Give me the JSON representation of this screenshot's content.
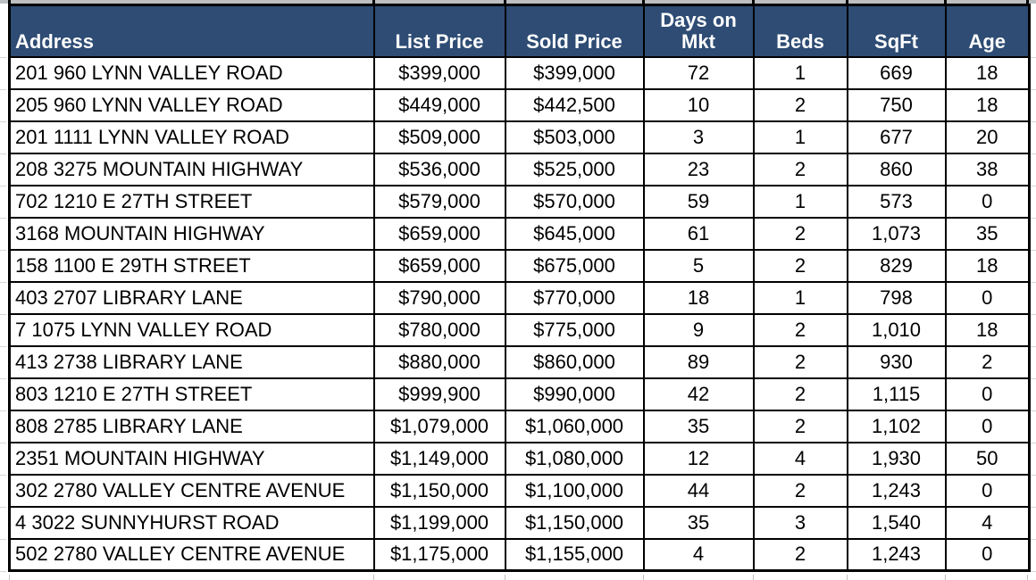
{
  "style": {
    "header_bg": "#2E4C74",
    "header_text": "#FFFFFF",
    "border_color": "#000000",
    "gridline_color": "#D6D6D6",
    "top_strip_color": "#BDBFC1"
  },
  "chart_data": {
    "type": "table",
    "title": "",
    "legend": [],
    "columns": [
      {
        "label": "Address",
        "key": "address",
        "align": "left"
      },
      {
        "label": "List Price",
        "key": "list-price",
        "align": "center"
      },
      {
        "label": "Sold Price",
        "key": "sold-price",
        "align": "center"
      },
      {
        "label": "Days on Mkt",
        "key": "days-on-mkt",
        "align": "center"
      },
      {
        "label": "Beds",
        "key": "beds",
        "align": "center"
      },
      {
        "label": "SqFt",
        "key": "sqft",
        "align": "center"
      },
      {
        "label": "Age",
        "key": "age",
        "align": "center"
      }
    ],
    "rows": [
      [
        "201 960 LYNN VALLEY ROAD",
        "$399,000",
        "$399,000",
        "72",
        "1",
        "669",
        "18"
      ],
      [
        "205 960 LYNN VALLEY ROAD",
        "$449,000",
        "$442,500",
        "10",
        "2",
        "750",
        "18"
      ],
      [
        "201 1111 LYNN VALLEY ROAD",
        "$509,000",
        "$503,000",
        "3",
        "1",
        "677",
        "20"
      ],
      [
        "208 3275 MOUNTAIN HIGHWAY",
        "$536,000",
        "$525,000",
        "23",
        "2",
        "860",
        "38"
      ],
      [
        "702 1210 E 27TH STREET",
        "$579,000",
        "$570,000",
        "59",
        "1",
        "573",
        "0"
      ],
      [
        "3168 MOUNTAIN HIGHWAY",
        "$659,000",
        "$645,000",
        "61",
        "2",
        "1,073",
        "35"
      ],
      [
        "158 1100 E 29TH STREET",
        "$659,000",
        "$675,000",
        "5",
        "2",
        "829",
        "18"
      ],
      [
        "403 2707 LIBRARY LANE",
        "$790,000",
        "$770,000",
        "18",
        "1",
        "798",
        "0"
      ],
      [
        "7 1075 LYNN VALLEY ROAD",
        "$780,000",
        "$775,000",
        "9",
        "2",
        "1,010",
        "18"
      ],
      [
        "413 2738 LIBRARY LANE",
        "$880,000",
        "$860,000",
        "89",
        "2",
        "930",
        "2"
      ],
      [
        "803 1210 E 27TH STREET",
        "$999,900",
        "$990,000",
        "42",
        "2",
        "1,115",
        "0"
      ],
      [
        "808 2785 LIBRARY LANE",
        "$1,079,000",
        "$1,060,000",
        "35",
        "2",
        "1,102",
        "0"
      ],
      [
        "2351 MOUNTAIN HIGHWAY",
        "$1,149,000",
        "$1,080,000",
        "12",
        "4",
        "1,930",
        "50"
      ],
      [
        "302 2780 VALLEY CENTRE AVENUE",
        "$1,150,000",
        "$1,100,000",
        "44",
        "2",
        "1,243",
        "0"
      ],
      [
        "4 3022 SUNNYHURST ROAD",
        "$1,199,000",
        "$1,150,000",
        "35",
        "3",
        "1,540",
        "4"
      ],
      [
        "502 2780 VALLEY CENTRE AVENUE",
        "$1,175,000",
        "$1,155,000",
        "4",
        "2",
        "1,243",
        "0"
      ]
    ]
  }
}
